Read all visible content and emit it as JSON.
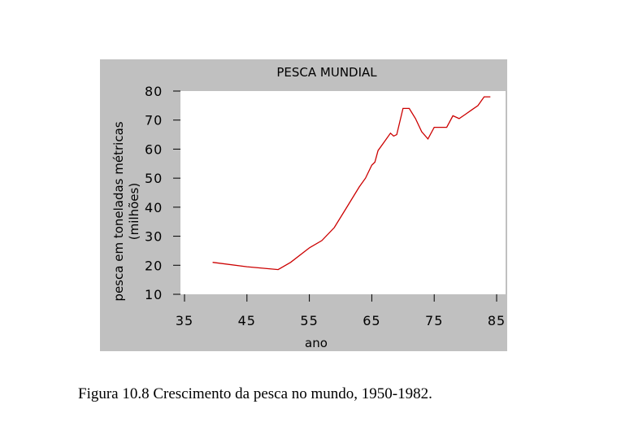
{
  "chart_data": {
    "type": "line",
    "title": "PESCA MUNDIAL",
    "xlabel": "ano",
    "ylabel": "pesca em toneladas métricas (milhões)",
    "xlim": [
      35,
      85
    ],
    "ylim": [
      10,
      80
    ],
    "xticks": [
      35,
      45,
      55,
      65,
      75,
      85
    ],
    "yticks": [
      10,
      20,
      30,
      40,
      50,
      60,
      70,
      80
    ],
    "series": [
      {
        "name": "pesca mundial",
        "color": "#cc0000",
        "x": [
          39.5,
          45,
          50,
          52,
          55,
          57,
          59,
          61,
          63,
          64,
          65,
          65.5,
          66,
          67,
          68,
          68.5,
          69,
          70,
          71,
          72,
          73,
          74,
          75,
          76,
          77,
          78,
          79,
          80,
          81,
          82,
          83,
          84
        ],
        "y": [
          21,
          19.5,
          18.5,
          21,
          26,
          28.5,
          33,
          40,
          47,
          50,
          54.5,
          55.5,
          59.5,
          62.5,
          65.5,
          64.5,
          65,
          74,
          74,
          70.5,
          66,
          63.5,
          67.5,
          67.5,
          67.5,
          71.5,
          70.5,
          72,
          73.5,
          75,
          78,
          78
        ]
      }
    ]
  },
  "caption": "Figura 10.8 Crescimento da pesca no mundo, 1950-1982."
}
